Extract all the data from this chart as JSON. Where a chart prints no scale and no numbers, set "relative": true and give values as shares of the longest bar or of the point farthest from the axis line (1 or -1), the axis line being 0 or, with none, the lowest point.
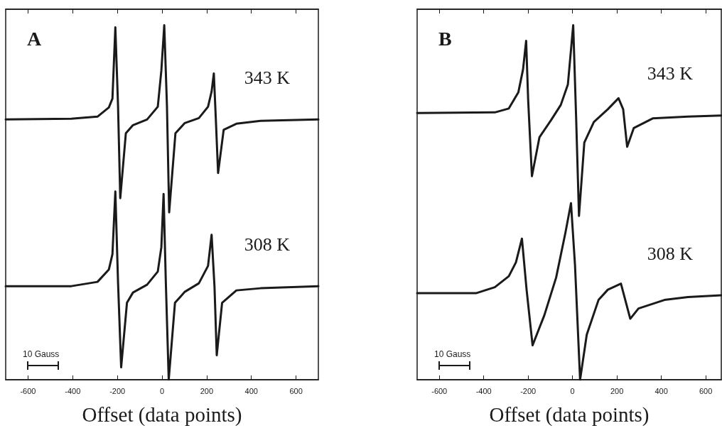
{
  "chart_data": [
    {
      "type": "line",
      "title": "A",
      "xlabel": "Offset (data points)",
      "relative": true,
      "xlim": [
        -700,
        700
      ],
      "xticks": [
        -600,
        -400,
        -200,
        0,
        200,
        400,
        600
      ],
      "tick_labels": "x",
      "grid": false,
      "legend": false,
      "marker": "none",
      "line_style": "solid",
      "annotations": [
        "10 Gauss"
      ],
      "series": [
        {
          "name": "343 K",
          "color": "#1a1a1a",
          "x": [
            -700,
            -406,
            -289,
            -238,
            -222,
            -209,
            -197,
            -187,
            -162,
            -130,
            -67,
            -19,
            -3,
            10,
            22,
            32,
            60,
            102,
            165,
            206,
            222,
            232,
            241,
            251,
            276,
            333,
            441,
            700
          ],
          "values": [
            0.734,
            0.736,
            0.742,
            0.768,
            0.793,
            0.994,
            0.774,
            0.512,
            0.695,
            0.718,
            0.734,
            0.77,
            0.872,
            1.0,
            0.774,
            0.472,
            0.695,
            0.724,
            0.738,
            0.77,
            0.813,
            0.864,
            0.734,
            0.583,
            0.705,
            0.722,
            0.73,
            0.734
          ]
        },
        {
          "name": "308 K",
          "color": "#1a1a1a",
          "x": [
            -700,
            -406,
            -289,
            -238,
            -222,
            -209,
            -197,
            -183,
            -157,
            -130,
            -67,
            -19,
            -3,
            7,
            17,
            30,
            58,
            102,
            165,
            206,
            222,
            235,
            245,
            269,
            333,
            441,
            700
          ],
          "values": [
            0.264,
            0.264,
            0.276,
            0.311,
            0.354,
            0.531,
            0.276,
            0.035,
            0.217,
            0.246,
            0.268,
            0.305,
            0.374,
            0.524,
            0.276,
            0.0,
            0.217,
            0.248,
            0.272,
            0.321,
            0.409,
            0.262,
            0.069,
            0.217,
            0.252,
            0.258,
            0.264
          ]
        }
      ]
    },
    {
      "type": "line",
      "title": "B",
      "xlabel": "Offset (data points)",
      "relative": true,
      "xlim": [
        -700,
        670
      ],
      "xticks": [
        -600,
        -400,
        -200,
        0,
        200,
        400,
        600
      ],
      "tick_labels": "x",
      "grid": false,
      "legend": false,
      "marker": "none",
      "line_style": "solid",
      "annotations": [
        "10 Gauss"
      ],
      "series": [
        {
          "name": "343 K",
          "color": "#1a1a1a",
          "x": [
            -700,
            -350,
            -287,
            -244,
            -223,
            -209,
            -200,
            -183,
            -149,
            -96,
            -53,
            -21,
            3,
            16,
            29,
            53,
            96,
            159,
            207,
            228,
            246,
            276,
            361,
            520,
            670
          ],
          "values": [
            0.752,
            0.754,
            0.765,
            0.811,
            0.875,
            0.956,
            0.79,
            0.574,
            0.684,
            0.733,
            0.775,
            0.833,
            1.0,
            0.742,
            0.462,
            0.669,
            0.727,
            0.763,
            0.794,
            0.763,
            0.657,
            0.71,
            0.737,
            0.742,
            0.745
          ]
        },
        {
          "name": "308 K",
          "color": "#1a1a1a",
          "x": [
            -700,
            -435,
            -350,
            -287,
            -255,
            -228,
            -207,
            -180,
            -127,
            -74,
            -32,
            -7,
            11,
            34,
            64,
            117,
            159,
            218,
            260,
            297,
            414,
            520,
            670
          ],
          "values": [
            0.244,
            0.244,
            0.261,
            0.292,
            0.331,
            0.398,
            0.254,
            0.097,
            0.182,
            0.288,
            0.415,
            0.498,
            0.324,
            0.0,
            0.127,
            0.225,
            0.254,
            0.271,
            0.172,
            0.201,
            0.225,
            0.233,
            0.238
          ]
        }
      ]
    }
  ]
}
